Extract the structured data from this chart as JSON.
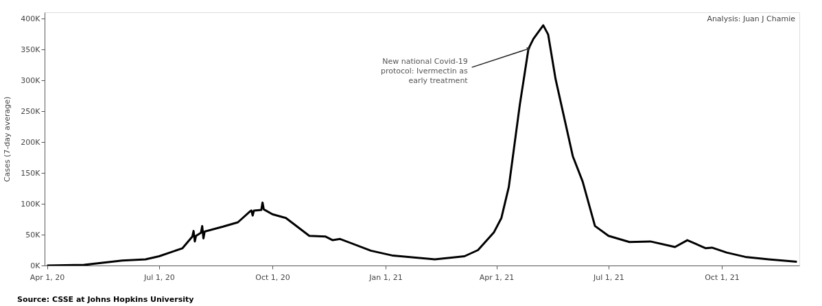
{
  "chart_data": {
    "type": "line",
    "ylabel": "Cases (7-day average)",
    "x": [
      "2020-04-01",
      "2020-05-01",
      "2020-06-01",
      "2020-06-20",
      "2020-07-01",
      "2020-07-20",
      "2020-07-28",
      "2020-07-29",
      "2020-07-30",
      "2020-07-31",
      "2020-08-04",
      "2020-08-05",
      "2020-08-06",
      "2020-08-07",
      "2020-08-22",
      "2020-09-03",
      "2020-09-13",
      "2020-09-14",
      "2020-09-15",
      "2020-09-16",
      "2020-09-22",
      "2020-09-23",
      "2020-09-24",
      "2020-10-01",
      "2020-10-12",
      "2020-10-31",
      "2020-11-13",
      "2020-11-19",
      "2020-11-25",
      "2020-12-20",
      "2021-01-07",
      "2021-02-10",
      "2021-03-06",
      "2021-03-17",
      "2021-03-30",
      "2021-04-05",
      "2021-04-11",
      "2021-04-20",
      "2021-04-27",
      "2021-05-01",
      "2021-05-09",
      "2021-05-13",
      "2021-05-19",
      "2021-06-02",
      "2021-06-10",
      "2021-06-20",
      "2021-07-01",
      "2021-07-18",
      "2021-08-04",
      "2021-08-24",
      "2021-09-03",
      "2021-09-18",
      "2021-09-23",
      "2021-10-05",
      "2021-10-20",
      "2021-11-08",
      "2021-12-01"
    ],
    "series": [
      {
        "color": "#000000",
        "values": [
          0,
          1000,
          8000,
          10000,
          15000,
          28000,
          47000,
          56000,
          39000,
          48000,
          53000,
          64000,
          44000,
          55000,
          63000,
          70000,
          88000,
          89000,
          81000,
          89000,
          90000,
          102000,
          91000,
          83000,
          77000,
          48000,
          47000,
          41000,
          43000,
          24000,
          16000,
          10000,
          15000,
          25000,
          54000,
          77000,
          127000,
          261000,
          351000,
          367000,
          389000,
          374000,
          302000,
          177000,
          136000,
          64000,
          48000,
          38000,
          39000,
          30000,
          41000,
          28000,
          29000,
          21000,
          14000,
          10000,
          6000
        ]
      }
    ],
    "xlim": [
      "2020-03-30",
      "2021-12-03"
    ],
    "xticks": [
      {
        "value": "2020-04-01",
        "label": "Apr 1, 20"
      },
      {
        "value": "2020-07-01",
        "label": "Jul 1, 20"
      },
      {
        "value": "2020-10-01",
        "label": "Oct 1, 20"
      },
      {
        "value": "2021-01-01",
        "label": "Jan 1, 21"
      },
      {
        "value": "2021-04-01",
        "label": "Apr 1, 21"
      },
      {
        "value": "2021-07-01",
        "label": "Jul 1, 21"
      },
      {
        "value": "2021-10-01",
        "label": "Oct 1, 21"
      }
    ],
    "ylim": [
      0,
      410000
    ],
    "yticks": [
      {
        "value": 0,
        "label": "0K"
      },
      {
        "value": 50000,
        "label": "50K"
      },
      {
        "value": 100000,
        "label": "100K"
      },
      {
        "value": 150000,
        "label": "150K"
      },
      {
        "value": 200000,
        "label": "200K"
      },
      {
        "value": 250000,
        "label": "250K"
      },
      {
        "value": 300000,
        "label": "300K"
      },
      {
        "value": 350000,
        "label": "350K"
      },
      {
        "value": 400000,
        "label": "400K"
      }
    ],
    "grid": false,
    "line_style": "solid",
    "annotations": [
      "Analysis: Juan J Chamie",
      {
        "text": "New national Covid-19 protocol: Ivermectin as early treatment",
        "x": "2021-04-27",
        "y": 351000
      },
      "Source: CSSE at Johns Hopkins University"
    ]
  }
}
